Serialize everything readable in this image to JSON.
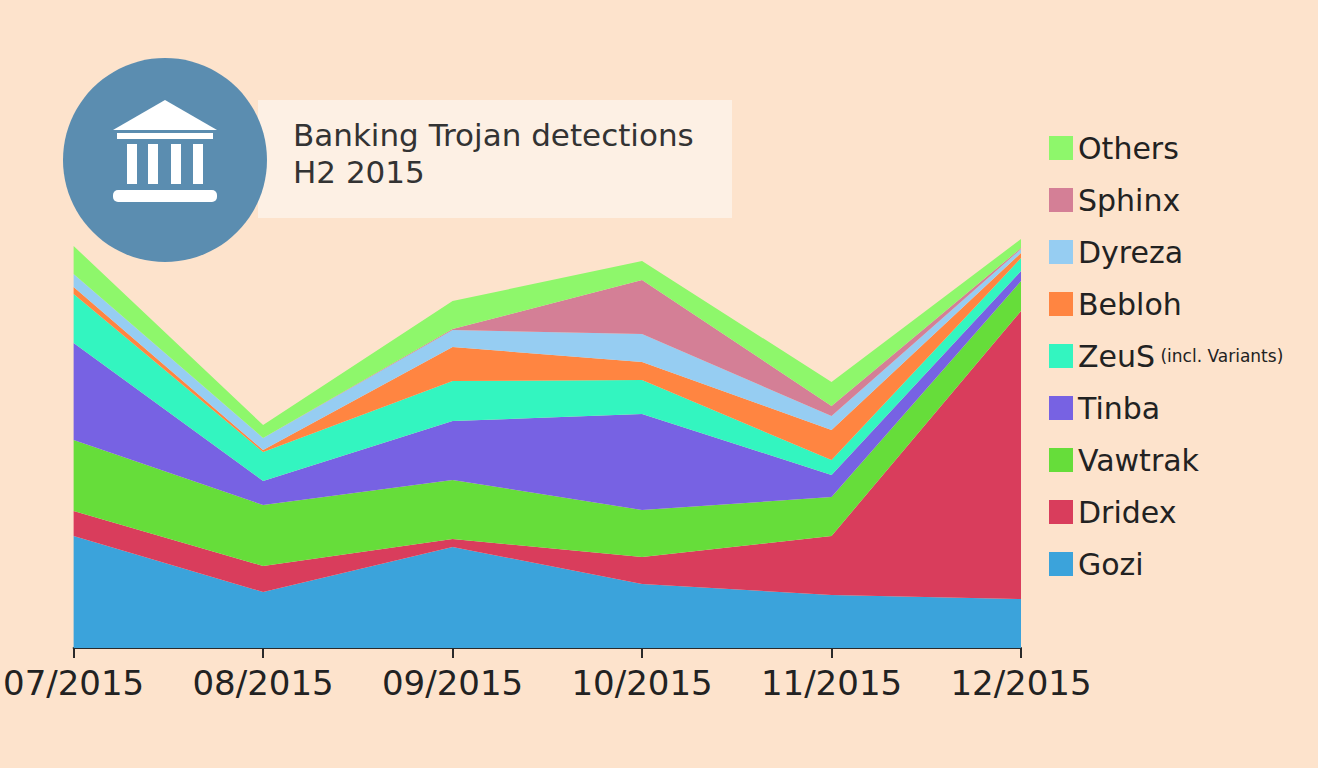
{
  "chart_data": {
    "type": "area",
    "title": "Banking Trojan detections",
    "subtitle": "H2 2015",
    "categories": [
      "07/2015",
      "08/2015",
      "09/2015",
      "10/2015",
      "11/2015",
      "12/2015"
    ],
    "series": [
      {
        "name": "Gozi",
        "color": "#3ba3db",
        "values": [
          112,
          56,
          101,
          64,
          53,
          49
        ]
      },
      {
        "name": "Dridex",
        "color": "#d93d5c",
        "values": [
          25,
          26,
          8,
          27,
          59,
          288
        ]
      },
      {
        "name": "Vawtrak",
        "color": "#66dd3a",
        "values": [
          71,
          61,
          59,
          47,
          39,
          30
        ]
      },
      {
        "name": "Tinba",
        "color": "#7762e3",
        "values": [
          97,
          24,
          59,
          96,
          22,
          10
        ]
      },
      {
        "name": "ZeuS (incl. Variants)",
        "color": "#33f5c0",
        "values": [
          49,
          29,
          40,
          34,
          15,
          13
        ]
      },
      {
        "name": "Bebloh",
        "color": "#ff8541",
        "values": [
          7,
          2,
          34,
          18,
          30,
          5
        ]
      },
      {
        "name": "Dyreza",
        "color": "#96cdf2",
        "values": [
          13,
          12,
          17,
          28,
          14,
          4
        ]
      },
      {
        "name": "Sphinx",
        "color": "#d47f96",
        "values": [
          0,
          0,
          1,
          54,
          10,
          1
        ]
      },
      {
        "name": "Others",
        "color": "#8ef76b",
        "values": [
          28,
          13,
          28,
          19,
          24,
          9
        ]
      }
    ],
    "ylim": [
      0,
      420
    ],
    "stacked": true,
    "grid": false,
    "legend": "right",
    "tick_labels": "x"
  }
}
